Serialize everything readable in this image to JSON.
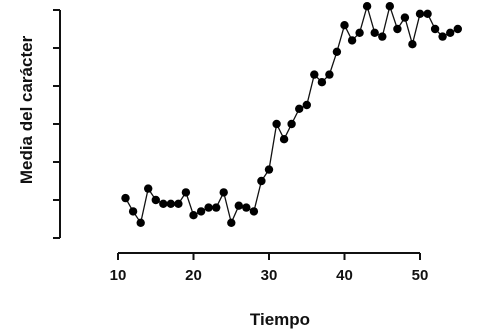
{
  "chart_data": {
    "type": "line",
    "title": "",
    "xlabel": "Tiempo",
    "ylabel": "Media del carácter",
    "xlim": [
      8,
      58
    ],
    "ylim": [
      0,
      6
    ],
    "x_ticks": [
      10,
      20,
      30,
      40,
      50
    ],
    "y_ticks": [
      0,
      1,
      2,
      3,
      4,
      5,
      6
    ],
    "grid": false,
    "legend": "none",
    "line_color": "#111111",
    "marker_color": "#000000",
    "series": [
      {
        "x": [
          11,
          12,
          13,
          14,
          15,
          16,
          17,
          18,
          19,
          20,
          21,
          22,
          23,
          24,
          25,
          26,
          27,
          28,
          29,
          30,
          31,
          32,
          33,
          34,
          35,
          36,
          37,
          38,
          39,
          40,
          41,
          42,
          43,
          44,
          45,
          46,
          47,
          48,
          49,
          50,
          51,
          52,
          53,
          54,
          55
        ],
        "y": [
          1.05,
          0.7,
          0.4,
          1.3,
          1.0,
          0.9,
          0.9,
          0.9,
          1.2,
          0.6,
          0.7,
          0.8,
          0.8,
          1.2,
          0.4,
          0.85,
          0.8,
          0.7,
          1.5,
          1.8,
          3.0,
          2.6,
          3.0,
          3.4,
          3.5,
          4.3,
          4.1,
          4.3,
          4.9,
          5.6,
          5.2,
          5.4,
          6.1,
          5.4,
          5.3,
          6.1,
          5.5,
          5.8,
          5.1,
          5.9,
          5.9,
          5.5,
          5.3,
          5.4,
          5.5
        ]
      }
    ]
  }
}
